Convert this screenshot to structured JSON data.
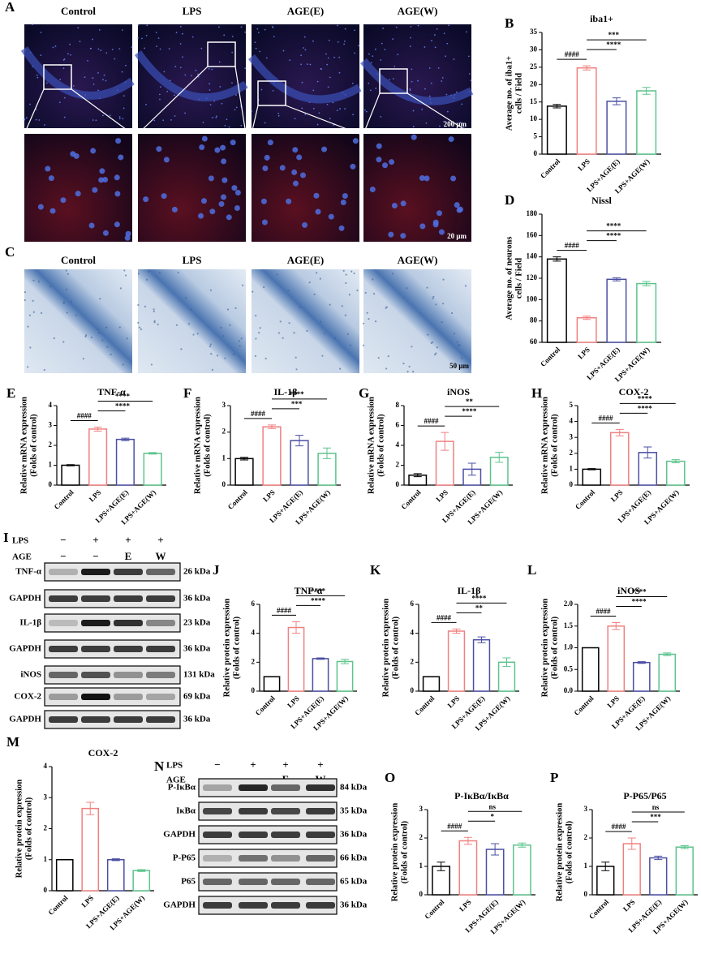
{
  "figure": {
    "panel_A": {
      "letter": "A",
      "columns": [
        "Control",
        "LPS",
        "AGE(E)",
        "AGE(W)"
      ],
      "scale_top": "200 μm",
      "scale_bottom": "20 μm"
    },
    "panel_C": {
      "letter": "C",
      "columns": [
        "Control",
        "LPS",
        "AGE(E)",
        "AGE(W)"
      ],
      "scale": "50 μm"
    },
    "blot_I": {
      "letter": "I",
      "treatments": [
        {
          "name": "LPS",
          "marks": [
            "−",
            "+",
            "+",
            "+"
          ]
        },
        {
          "name": "AGE",
          "marks": [
            "−",
            "−",
            "E",
            "W"
          ]
        }
      ],
      "rows": [
        {
          "name": "TNF-α",
          "size": "26 kDa"
        },
        {
          "name": "GAPDH",
          "size": "36 kDa"
        },
        {
          "name": "IL-1β",
          "size": "23 kDa"
        },
        {
          "name": "GAPDH",
          "size": "36 kDa"
        },
        {
          "name": "iNOS",
          "size": "131 kDa"
        },
        {
          "name": "COX-2",
          "size": "69 kDa"
        },
        {
          "name": "GAPDH",
          "size": "36 kDa"
        }
      ]
    },
    "blot_N": {
      "letter": "N",
      "treatments": [
        {
          "name": "LPS",
          "marks": [
            "−",
            "+",
            "+",
            "+"
          ]
        },
        {
          "name": "AGE",
          "marks": [
            "−",
            "−",
            "E",
            "W"
          ]
        }
      ],
      "rows": [
        {
          "name": "P-IκBα",
          "size": "84 kDa"
        },
        {
          "name": "IκBα",
          "size": "35 kDa"
        },
        {
          "name": "GAPDH",
          "size": "36 kDa"
        },
        {
          "name": "P-P65",
          "size": "66 kDa"
        },
        {
          "name": "P65",
          "size": "65 kDa"
        },
        {
          "name": "GAPDH",
          "size": "36 kDa"
        }
      ]
    }
  },
  "chart_data": [
    {
      "letter": "B",
      "type": "bar",
      "title": "iba1+",
      "ylabel": [
        "Average no. of iba1+",
        "cells / Field"
      ],
      "categories": [
        "Control",
        "LPS",
        "LPS+AGE(E)",
        "LPS+AGE(W)"
      ],
      "values": [
        13.8,
        24.8,
        15.2,
        18.2
      ],
      "errors": [
        0.5,
        0.6,
        1.0,
        1.0
      ],
      "colors": [
        "#000000",
        "#f08080",
        "#4b4fa3",
        "#5cc48c"
      ],
      "ylim": [
        0,
        35
      ],
      "yticks": [
        0,
        5,
        10,
        15,
        20,
        25,
        30,
        35
      ],
      "annotations": [
        {
          "text": "####",
          "pair": [
            "Control",
            "LPS"
          ]
        },
        {
          "text": "****",
          "pair": [
            "LPS",
            "LPS+AGE(E)"
          ]
        },
        {
          "text": "***",
          "pair": [
            "LPS",
            "LPS+AGE(W)"
          ]
        }
      ]
    },
    {
      "letter": "D",
      "type": "bar",
      "title": "Nissl",
      "ylabel": [
        "Average no. of neurons",
        "cells / Field"
      ],
      "categories": [
        "Control",
        "LPS",
        "LPS+AGE(E)",
        "LPS+AGE(W)"
      ],
      "values": [
        138,
        83,
        119,
        115
      ],
      "errors": [
        2,
        1.5,
        1.5,
        2
      ],
      "colors": [
        "#000000",
        "#f08080",
        "#4b4fa3",
        "#5cc48c"
      ],
      "ylim": [
        60,
        180
      ],
      "yticks": [
        60,
        80,
        100,
        120,
        140,
        160,
        180
      ],
      "annotations": [
        {
          "text": "####",
          "pair": [
            "Control",
            "LPS"
          ]
        },
        {
          "text": "****",
          "pair": [
            "LPS",
            "LPS+AGE(E)"
          ]
        },
        {
          "text": "****",
          "pair": [
            "LPS",
            "LPS+AGE(W)"
          ]
        }
      ]
    },
    {
      "letter": "E",
      "type": "bar",
      "title": "TNF-α",
      "ylabel": [
        "Relative mRNA expression",
        "(Folds of control)"
      ],
      "categories": [
        "Control",
        "LPS",
        "LPS+AGE(E)",
        "LPS+AGE(W)"
      ],
      "values": [
        1.0,
        2.82,
        2.3,
        1.6
      ],
      "errors": [
        0.03,
        0.1,
        0.06,
        0.04
      ],
      "colors": [
        "#000000",
        "#f08080",
        "#4b4fa3",
        "#5cc48c"
      ],
      "ylim": [
        0,
        4
      ],
      "yticks": [
        0,
        1,
        2,
        3,
        4
      ],
      "annotations": [
        {
          "text": "####",
          "pair": [
            "Control",
            "LPS"
          ]
        },
        {
          "text": "****",
          "pair": [
            "LPS",
            "LPS+AGE(E)"
          ]
        },
        {
          "text": "****",
          "pair": [
            "LPS",
            "LPS+AGE(W)"
          ]
        }
      ]
    },
    {
      "letter": "F",
      "type": "bar",
      "title": "IL-1β",
      "ylabel": [
        "Relative mRNA expression",
        "(Folds of control)"
      ],
      "categories": [
        "Control",
        "LPS",
        "LPS+AGE(E)",
        "LPS+AGE(W)"
      ],
      "values": [
        1.0,
        2.2,
        1.68,
        1.2
      ],
      "errors": [
        0.05,
        0.07,
        0.2,
        0.2
      ],
      "colors": [
        "#000000",
        "#f08080",
        "#4b4fa3",
        "#5cc48c"
      ],
      "ylim": [
        0,
        3
      ],
      "yticks": [
        0,
        1,
        2,
        3
      ],
      "annotations": [
        {
          "text": "####",
          "pair": [
            "Control",
            "LPS"
          ]
        },
        {
          "text": "***",
          "pair": [
            "LPS",
            "LPS+AGE(E)"
          ]
        },
        {
          "text": "****",
          "pair": [
            "LPS",
            "LPS+AGE(W)"
          ]
        }
      ]
    },
    {
      "letter": "G",
      "type": "bar",
      "title": "iNOS",
      "ylabel": [
        "Relative mRNA expression",
        "(Folds of control)"
      ],
      "categories": [
        "Control",
        "LPS",
        "LPS+AGE(E)",
        "LPS+AGE(W)"
      ],
      "values": [
        1.0,
        4.4,
        1.6,
        2.8
      ],
      "errors": [
        0.15,
        0.9,
        0.6,
        0.5
      ],
      "colors": [
        "#000000",
        "#f08080",
        "#4b4fa3",
        "#5cc48c"
      ],
      "ylim": [
        0,
        8
      ],
      "yticks": [
        0,
        2,
        4,
        6,
        8
      ],
      "annotations": [
        {
          "text": "####",
          "pair": [
            "Control",
            "LPS"
          ]
        },
        {
          "text": "****",
          "pair": [
            "LPS",
            "LPS+AGE(E)"
          ]
        },
        {
          "text": "**",
          "pair": [
            "LPS",
            "LPS+AGE(W)"
          ]
        }
      ]
    },
    {
      "letter": "H",
      "type": "bar",
      "title": "COX-2",
      "ylabel": [
        "Relative mRNA expression",
        "(Folds of control)"
      ],
      "categories": [
        "Control",
        "LPS",
        "LPS+AGE(E)",
        "LPS+AGE(W)"
      ],
      "values": [
        1.0,
        3.3,
        2.05,
        1.5
      ],
      "errors": [
        0.04,
        0.2,
        0.35,
        0.1
      ],
      "colors": [
        "#000000",
        "#f08080",
        "#4b4fa3",
        "#5cc48c"
      ],
      "ylim": [
        0,
        5
      ],
      "yticks": [
        0,
        1,
        2,
        3,
        4,
        5
      ],
      "annotations": [
        {
          "text": "####",
          "pair": [
            "Control",
            "LPS"
          ]
        },
        {
          "text": "****",
          "pair": [
            "LPS",
            "LPS+AGE(E)"
          ]
        },
        {
          "text": "****",
          "pair": [
            "LPS",
            "LPS+AGE(W)"
          ]
        }
      ]
    },
    {
      "letter": "J",
      "type": "bar",
      "title": "TNF-α",
      "ylabel": [
        "Relative protein expression",
        "(Folds of control)"
      ],
      "categories": [
        "Control",
        "LPS",
        "LPS+AGE(E)",
        "LPS+AGE(W)"
      ],
      "values": [
        1.0,
        4.4,
        2.25,
        2.05
      ],
      "errors": [
        0,
        0.4,
        0.05,
        0.15
      ],
      "colors": [
        "#000000",
        "#f08080",
        "#4b4fa3",
        "#5cc48c"
      ],
      "ylim": [
        0,
        6
      ],
      "yticks": [
        0,
        2,
        4,
        6
      ],
      "annotations": [
        {
          "text": "####",
          "pair": [
            "Control",
            "LPS"
          ]
        },
        {
          "text": "****",
          "pair": [
            "LPS",
            "LPS+AGE(E)"
          ]
        },
        {
          "text": "****",
          "pair": [
            "LPS",
            "LPS+AGE(W)"
          ]
        }
      ]
    },
    {
      "letter": "K",
      "type": "bar",
      "title": "IL-1β",
      "ylabel": [
        "Relative protein expression",
        "(Folds of control)"
      ],
      "categories": [
        "Control",
        "LPS",
        "LPS+AGE(E)",
        "LPS+AGE(W)"
      ],
      "values": [
        1.0,
        4.15,
        3.55,
        2.0
      ],
      "errors": [
        0,
        0.15,
        0.2,
        0.3
      ],
      "colors": [
        "#000000",
        "#f08080",
        "#4b4fa3",
        "#5cc48c"
      ],
      "ylim": [
        0,
        6
      ],
      "yticks": [
        0,
        2,
        4,
        6
      ],
      "annotations": [
        {
          "text": "####",
          "pair": [
            "Control",
            "LPS"
          ]
        },
        {
          "text": "**",
          "pair": [
            "LPS",
            "LPS+AGE(E)"
          ]
        },
        {
          "text": "****",
          "pair": [
            "LPS",
            "LPS+AGE(W)"
          ]
        }
      ]
    },
    {
      "letter": "L",
      "type": "bar",
      "title": "iNOS",
      "ylabel": [
        "Relative protein expression",
        "(Folds of control)"
      ],
      "categories": [
        "Control",
        "LPS",
        "LPS+AGE(E)",
        "LPS+AGE(W)"
      ],
      "values": [
        1.0,
        1.5,
        0.66,
        0.85
      ],
      "errors": [
        0,
        0.08,
        0.02,
        0.03
      ],
      "colors": [
        "#000000",
        "#f08080",
        "#4b4fa3",
        "#5cc48c"
      ],
      "ylim": [
        0,
        2
      ],
      "yticks": [
        {
          "value": 0,
          "label": "0.0"
        },
        0.5,
        {
          "value": 1,
          "label": "1.0"
        },
        1.5,
        {
          "value": 2,
          "label": "2.0"
        }
      ],
      "annotations": [
        {
          "text": "####",
          "pair": [
            "Control",
            "LPS"
          ]
        },
        {
          "text": "****",
          "pair": [
            "LPS",
            "LPS+AGE(E)"
          ]
        },
        {
          "text": "****",
          "pair": [
            "LPS",
            "LPS+AGE(W)"
          ]
        }
      ]
    },
    {
      "letter": "M",
      "type": "bar",
      "title": "COX-2",
      "ylabel": [
        "Relative protein expression",
        "(Folds of control)"
      ],
      "categories": [
        "Control",
        "LPS",
        "LPS+AGE(E)",
        "LPS+AGE(W)"
      ],
      "values": [
        1.0,
        2.65,
        1.0,
        0.65
      ],
      "errors": [
        0,
        0.2,
        0.03,
        0.03
      ],
      "colors": [
        "#000000",
        "#f08080",
        "#4b4fa3",
        "#5cc48c"
      ],
      "ylim": [
        0,
        4
      ],
      "yticks": [
        0,
        1,
        2,
        3,
        4
      ]
    },
    {
      "letter": "O",
      "type": "bar",
      "title": "P-IκBα/IκBα",
      "ylabel": [
        "Relative protein expression",
        "(Folds of control)"
      ],
      "categories": [
        "Control",
        "LPS",
        "LPS+AGE(E)",
        "LPS+AGE(W)"
      ],
      "values": [
        1.0,
        1.9,
        1.6,
        1.75
      ],
      "errors": [
        0.15,
        0.12,
        0.2,
        0.07
      ],
      "colors": [
        "#000000",
        "#f08080",
        "#4b4fa3",
        "#5cc48c"
      ],
      "ylim": [
        0,
        3
      ],
      "yticks": [
        0,
        1,
        2,
        3
      ],
      "annotations": [
        {
          "text": "####",
          "pair": [
            "Control",
            "LPS"
          ]
        },
        {
          "text": "*",
          "pair": [
            "LPS",
            "LPS+AGE(E)"
          ]
        },
        {
          "text": "ns",
          "pair": [
            "LPS",
            "LPS+AGE(W)"
          ]
        }
      ]
    },
    {
      "letter": "P",
      "type": "bar",
      "title": "P-P65/P65",
      "ylabel": [
        "Relative protein expression",
        "(Folds of control)"
      ],
      "categories": [
        "Control",
        "LPS",
        "LPS+AGE(E)",
        "LPS+AGE(W)"
      ],
      "values": [
        1.0,
        1.8,
        1.3,
        1.68
      ],
      "errors": [
        0.15,
        0.2,
        0.06,
        0.05
      ],
      "colors": [
        "#000000",
        "#f08080",
        "#4b4fa3",
        "#5cc48c"
      ],
      "ylim": [
        0,
        3
      ],
      "yticks": [
        0,
        1,
        2,
        3
      ],
      "annotations": [
        {
          "text": "####",
          "pair": [
            "Control",
            "LPS"
          ]
        },
        {
          "text": "***",
          "pair": [
            "LPS",
            "LPS+AGE(E)"
          ]
        },
        {
          "text": "ns",
          "pair": [
            "LPS",
            "LPS+AGE(W)"
          ]
        }
      ]
    }
  ]
}
